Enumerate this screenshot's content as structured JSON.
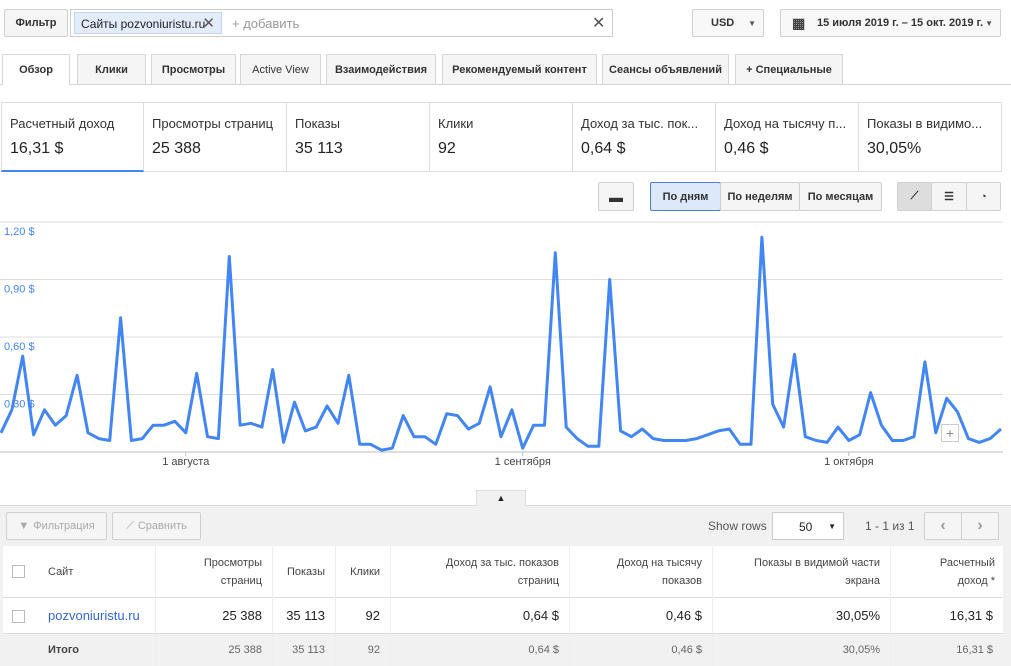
{
  "filter": {
    "label": "Фильтр",
    "chip": "Сайты pozvoniuristu.ru",
    "add": "+ добавить"
  },
  "currency": "USD",
  "date_range": "15 июля 2019 г. – 15 окт. 2019 г.",
  "tabs": [
    "Обзор",
    "Клики",
    "Просмотры",
    "Active View",
    "Взаимодействия",
    "Рекомендуемый контент",
    "Сеансы объявлений",
    "+ Специальные"
  ],
  "scorecards": [
    {
      "label": "Расчетный доход",
      "value": "16,31 $"
    },
    {
      "label": "Просмотры страниц",
      "value": "25 388"
    },
    {
      "label": "Показы",
      "value": "35 113"
    },
    {
      "label": "Клики",
      "value": "92"
    },
    {
      "label": "Доход за тыс. пок...",
      "value": "0,64 $"
    },
    {
      "label": "Доход на тысячу п...",
      "value": "0,46 $"
    },
    {
      "label": "Показы в видимо...",
      "value": "30,05%"
    }
  ],
  "view_buttons": [
    "По дням",
    "По неделям",
    "По месяцам"
  ],
  "chart_data": {
    "type": "line",
    "categories": [
      null,
      null,
      null,
      null,
      null,
      null,
      null,
      null,
      null,
      null,
      null,
      null,
      null,
      null,
      null,
      null,
      null,
      "1 августа",
      null,
      null,
      null,
      null,
      null,
      null,
      null,
      null,
      null,
      null,
      null,
      null,
      null,
      null,
      null,
      null,
      null,
      null,
      null,
      null,
      null,
      null,
      null,
      null,
      null,
      null,
      null,
      null,
      null,
      null,
      "1 сентября",
      null,
      null,
      null,
      null,
      null,
      null,
      null,
      null,
      null,
      null,
      null,
      null,
      null,
      null,
      null,
      null,
      null,
      null,
      null,
      null,
      null,
      null,
      null,
      null,
      null,
      null,
      null,
      null,
      null,
      "1 октября",
      null,
      null,
      null,
      null,
      null,
      null,
      null,
      null,
      null,
      null,
      null,
      null,
      null,
      null
    ],
    "series": [
      {
        "name": "Расчетный доход",
        "color": "#4285f4",
        "values": [
          0.1,
          0.22,
          0.5,
          0.09,
          0.22,
          0.14,
          0.19,
          0.4,
          0.1,
          0.07,
          0.06,
          0.7,
          0.06,
          0.07,
          0.14,
          0.14,
          0.16,
          0.1,
          0.41,
          0.08,
          0.07,
          1.02,
          0.14,
          0.15,
          0.13,
          0.43,
          0.05,
          0.26,
          0.11,
          0.13,
          0.24,
          0.15,
          0.4,
          0.04,
          0.04,
          0.01,
          0.02,
          0.19,
          0.08,
          0.08,
          0.04,
          0.2,
          0.19,
          0.12,
          0.15,
          0.34,
          0.08,
          0.22,
          0.02,
          0.14,
          0.14,
          1.04,
          0.13,
          0.07,
          0.03,
          0.03,
          0.9,
          0.11,
          0.08,
          0.12,
          0.07,
          0.06,
          0.06,
          0.06,
          0.07,
          0.09,
          0.11,
          0.12,
          0.04,
          0.04,
          1.12,
          0.25,
          0.13,
          0.51,
          0.08,
          0.06,
          0.05,
          0.13,
          0.06,
          0.09,
          0.31,
          0.14,
          0.06,
          0.06,
          0.08,
          0.47,
          0.1,
          0.28,
          0.21,
          0.07,
          0.05,
          0.07,
          0.12
        ]
      }
    ],
    "ylim": [
      0,
      1.2
    ],
    "yticks": [
      {
        "value": 0.3,
        "label": "0,30 $"
      },
      {
        "value": 0.6,
        "label": "0,60 $"
      },
      {
        "value": 0.9,
        "label": "0,90 $"
      },
      {
        "value": 1.2,
        "label": "1,20 $"
      }
    ],
    "grid": true
  },
  "table": {
    "toolbar": {
      "filter": "Фильтрация",
      "compare": "Сравнить",
      "show_rows": "Show rows",
      "rows_value": "50",
      "pager": "1 - 1 из 1"
    },
    "header": [
      "Сайт",
      "Просмотры страниц",
      "Показы",
      "Клики",
      "Доход за тыс. показов страниц",
      "Доход на тысячу показов",
      "Показы в видимой части экрана",
      "Расчетный доход *"
    ],
    "rows": [
      [
        "pozvoniuristu.ru",
        "25 388",
        "35 113",
        "92",
        "0,64 $",
        "0,46 $",
        "30,05%",
        "16,31 $"
      ],
      [
        "Итого",
        "25 388",
        "35 113",
        "92",
        "0,64 $",
        "0,46 $",
        "30,05%",
        "16,31 $"
      ]
    ]
  }
}
